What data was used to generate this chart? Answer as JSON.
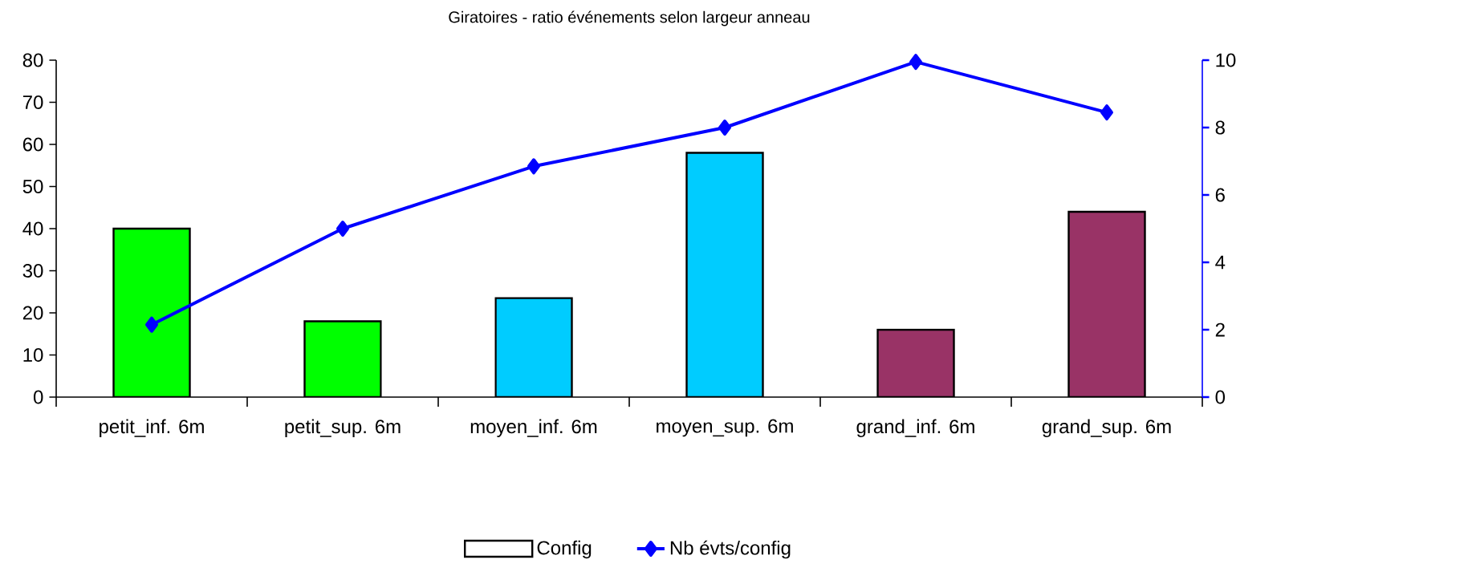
{
  "chart_data": {
    "type": "bar",
    "title": "Giratoires - ratio événements selon largeur anneau",
    "categories": [
      "petit_inf. 6m",
      "petit_sup. 6m",
      "moyen_inf. 6m",
      "moyen_sup. 6m",
      "grand_inf. 6m",
      "grand_sup. 6m"
    ],
    "series": [
      {
        "name": "Config",
        "colors": [
          "#00ff00",
          "#00ff00",
          "#00ccff",
          "#00ccff",
          "#993366",
          "#993366"
        ],
        "values": [
          40,
          18,
          23.5,
          58,
          16,
          44
        ]
      },
      {
        "name": "Nb évts/config",
        "type": "line",
        "axis": "y2",
        "color": "#0000ff",
        "marker": "diamond",
        "values": [
          2.15,
          5.0,
          6.85,
          8.0,
          9.95,
          8.45
        ]
      }
    ],
    "ylim": [
      0,
      80
    ],
    "yticks": [
      0,
      10,
      20,
      30,
      40,
      50,
      60,
      70,
      80
    ],
    "y2lim": [
      0,
      10
    ],
    "y2ticks": [
      0,
      2,
      4,
      6,
      8,
      10
    ],
    "legend": "bottom",
    "grid": false
  }
}
